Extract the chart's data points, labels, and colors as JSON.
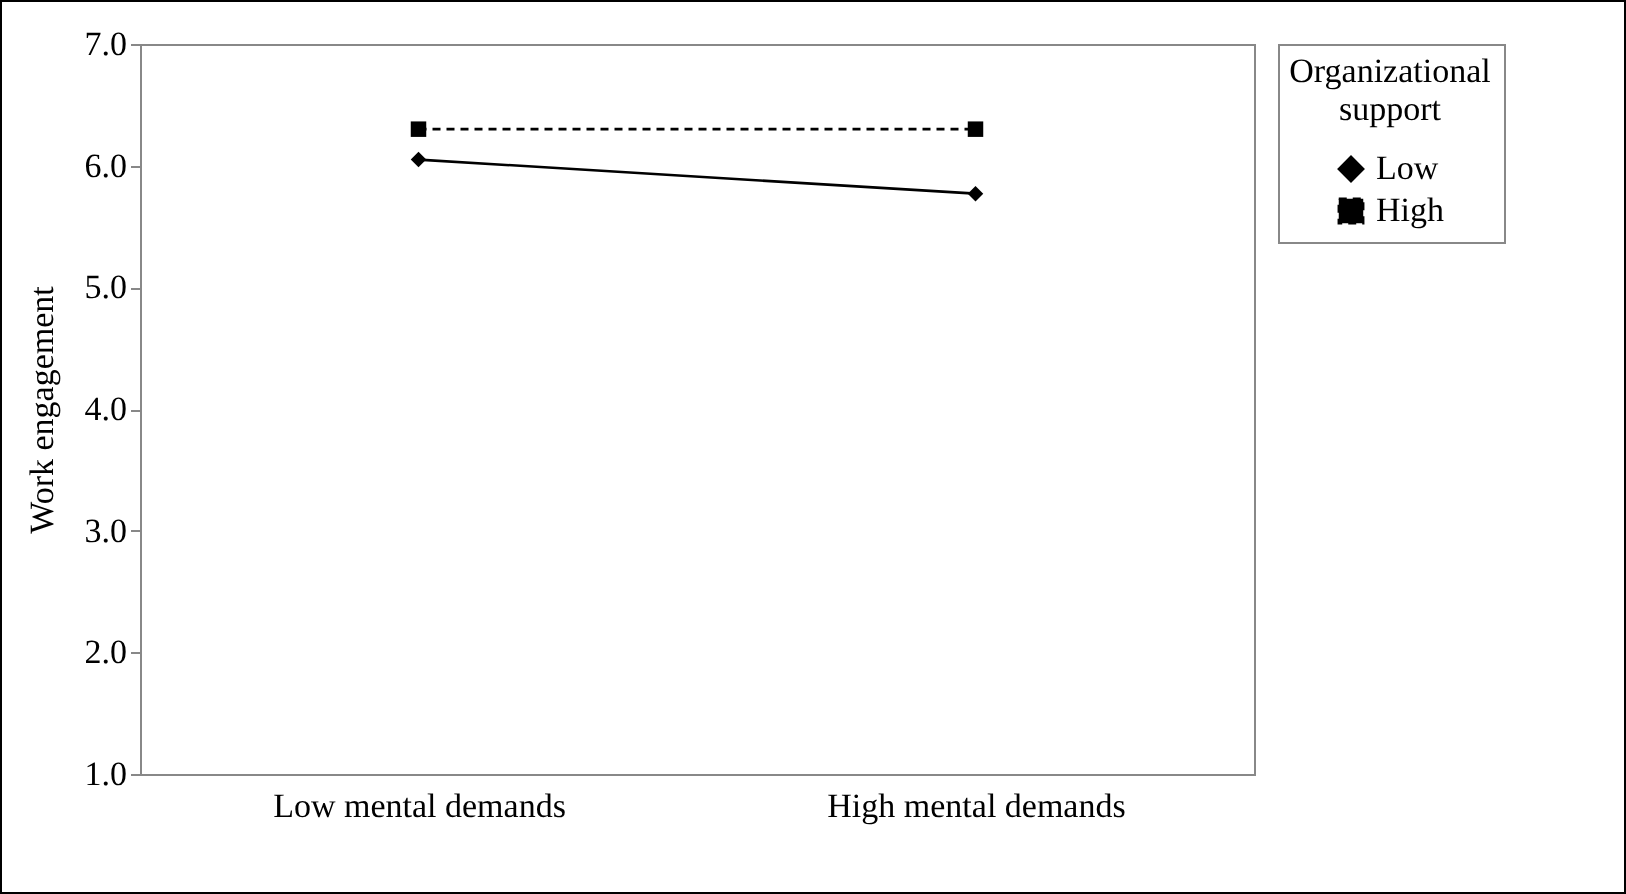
{
  "chart_data": {
    "type": "line",
    "ylabel": "Work engagement",
    "legend_title": "Organizational\nsupport",
    "categories": [
      "Low mental demands",
      "High mental demands"
    ],
    "series": [
      {
        "name": "Low",
        "color": "#000000",
        "values": [
          6.05,
          5.77
        ],
        "marker": "diamond",
        "line_style": "solid"
      },
      {
        "name": "High",
        "color": "#000000",
        "values": [
          6.3,
          6.3
        ],
        "marker": "square",
        "line_style": "dashed"
      }
    ],
    "ylim": [
      1.0,
      7.0
    ],
    "yticks": [
      {
        "value": 1,
        "label": "1.0"
      },
      {
        "value": 2,
        "label": "2.0"
      },
      {
        "value": 3,
        "label": "3.0"
      },
      {
        "value": 4,
        "label": "4.0"
      },
      {
        "value": 5,
        "label": "5.0"
      },
      {
        "value": 6,
        "label": "6.0"
      },
      {
        "value": 7,
        "label": "7.0"
      }
    ],
    "grid": false,
    "legend": "right"
  }
}
